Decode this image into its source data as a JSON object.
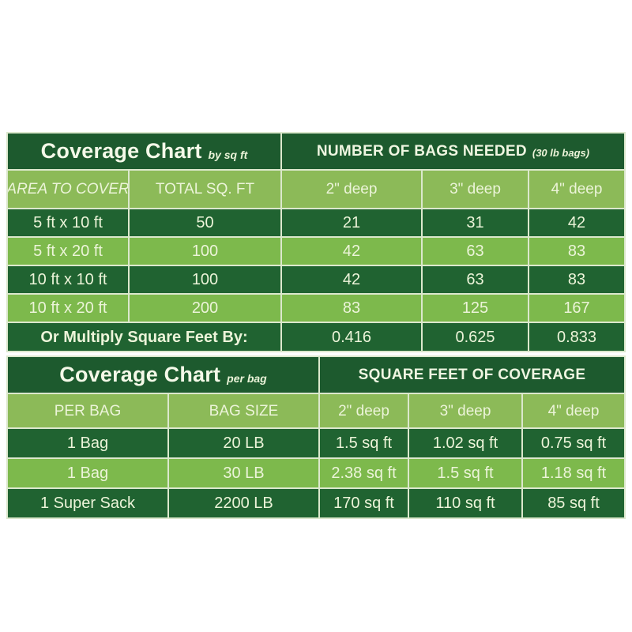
{
  "colors": {
    "title_dark_green": "#1d5a2e",
    "row_dark_green": "#206331",
    "header_light_green": "#8cba58",
    "row_light_green": "#7db94c",
    "text_light": "#ecf4d9",
    "grid_line": "#dce8cd",
    "page_background": "#ffffff"
  },
  "chart_data": [
    {
      "type": "table",
      "title": "Coverage Chart",
      "title_suffix": "by sq ft",
      "right_title": "NUMBER OF BAGS NEEDED",
      "right_title_suffix": "(30 lb bags)",
      "columns": [
        "AREA TO COVER",
        "TOTAL SQ. FT",
        "2\" deep",
        "3\" deep",
        "4\" deep"
      ],
      "rows": [
        [
          "5 ft x 10 ft",
          "50",
          "21",
          "31",
          "42"
        ],
        [
          "5 ft x 20 ft",
          "100",
          "42",
          "63",
          "83"
        ],
        [
          "10 ft x 10 ft",
          "100",
          "42",
          "63",
          "83"
        ],
        [
          "10 ft x 20 ft",
          "200",
          "83",
          "125",
          "167"
        ]
      ],
      "footer": {
        "label": "Or Multiply Square Feet By:",
        "values": [
          "0.416",
          "0.625",
          "0.833"
        ]
      }
    },
    {
      "type": "table",
      "title": "Coverage Chart",
      "title_suffix": "per bag",
      "right_title": "SQUARE FEET OF COVERAGE",
      "columns": [
        "PER BAG",
        "BAG SIZE",
        "2\" deep",
        "3\" deep",
        "4\" deep"
      ],
      "rows": [
        [
          "1 Bag",
          "20 LB",
          "1.5 sq ft",
          "1.02 sq ft",
          "0.75 sq ft"
        ],
        [
          "1 Bag",
          "30 LB",
          "2.38 sq ft",
          "1.5 sq ft",
          "1.18 sq ft"
        ],
        [
          "1 Super Sack",
          "2200 LB",
          "170 sq ft",
          "110 sq ft",
          "85 sq ft"
        ]
      ]
    }
  ]
}
